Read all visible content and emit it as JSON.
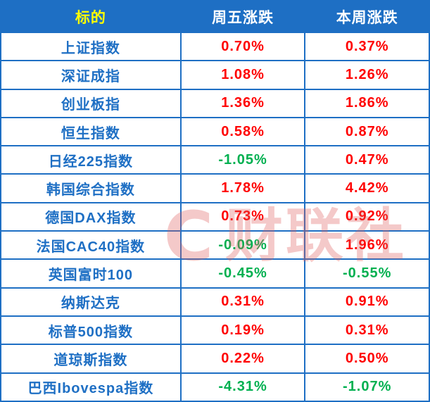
{
  "colors": {
    "header_bg": "#1e6fc4",
    "header_first_col_text": "#ffff00",
    "header_text": "#ffffff",
    "label_text": "#1e6fc4",
    "positive": "#ff0000",
    "negative": "#00b050",
    "border": "#1e6fc4",
    "watermark": "#e05b5b"
  },
  "watermark": {
    "logo_letter": "C",
    "text": "财联社"
  },
  "chart_data": {
    "type": "table",
    "title": "",
    "columns": [
      "标的",
      "周五涨跌",
      "本周涨跌"
    ],
    "rows": [
      {
        "label": "上证指数",
        "friday": "0.70%",
        "week": "0.37%"
      },
      {
        "label": "深证成指",
        "friday": "1.08%",
        "week": "1.26%"
      },
      {
        "label": "创业板指",
        "friday": "1.36%",
        "week": "1.86%"
      },
      {
        "label": "恒生指数",
        "friday": "0.58%",
        "week": "0.87%"
      },
      {
        "label": "日经225指数",
        "friday": "-1.05%",
        "week": "0.47%"
      },
      {
        "label": "韩国综合指数",
        "friday": "1.78%",
        "week": "4.42%"
      },
      {
        "label": "德国DAX指数",
        "friday": "0.73%",
        "week": "0.92%"
      },
      {
        "label": "法国CAC40指数",
        "friday": "-0.09%",
        "week": "1.96%"
      },
      {
        "label": "英国富时100",
        "friday": "-0.45%",
        "week": "-0.55%"
      },
      {
        "label": "纳斯达克",
        "friday": "0.31%",
        "week": "0.91%"
      },
      {
        "label": "标普500指数",
        "friday": "0.19%",
        "week": "0.31%"
      },
      {
        "label": "道琼斯指数",
        "friday": "0.22%",
        "week": "0.50%"
      },
      {
        "label": "巴西Ibovespa指数",
        "friday": "-4.31%",
        "week": "-1.07%"
      }
    ]
  }
}
